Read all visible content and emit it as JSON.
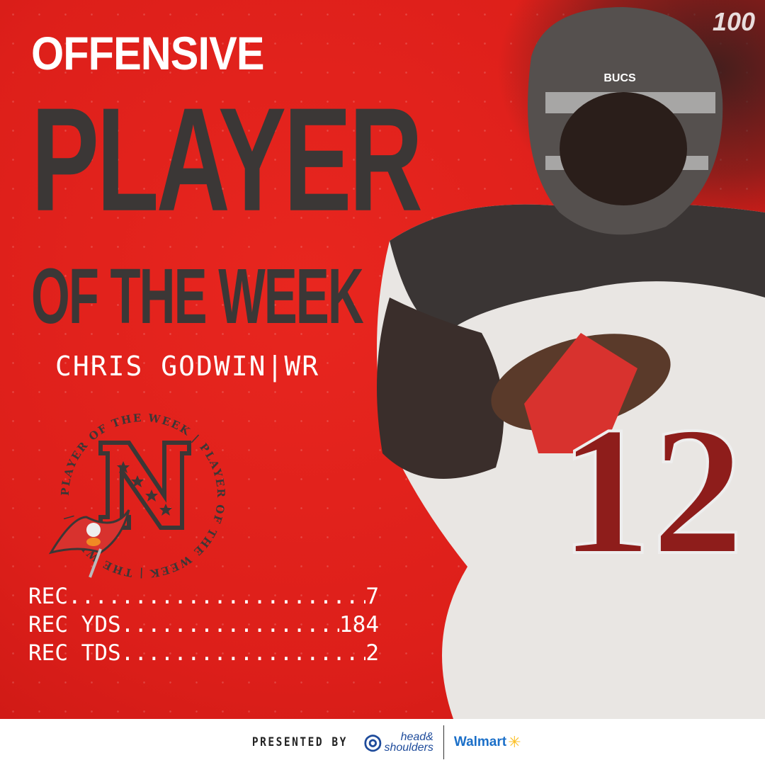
{
  "title": {
    "line1": "OFFENSIVE",
    "line2": "PLAYER",
    "line3": "OF THE WEEK"
  },
  "player": {
    "name_line": "CHRIS GODWIN|WR",
    "jersey_number": "12",
    "helmet_text": "BUCS"
  },
  "badge": {
    "ring_text": "PLAYER OF THE WEEK | PLAYER OF THE WEEK | THE WEEK | "
  },
  "stats": [
    {
      "label": "REC",
      "value": "7"
    },
    {
      "label": "REC YDS",
      "value": "184"
    },
    {
      "label": "REC TDS",
      "value": "2"
    }
  ],
  "footer": {
    "presented_by": "PRESENTED BY",
    "sponsor1_line1": "head&",
    "sponsor1_line2": "shoulders",
    "sponsor2": "Walmart"
  },
  "corner_logo": "100",
  "colors": {
    "background": "#dd1f1a",
    "title_dark": "#3b3736",
    "text_light": "#ffffff",
    "walmart_blue": "#1b6fc8",
    "walmart_spark": "#fbbf24",
    "hs_blue": "#1e4b9b"
  }
}
